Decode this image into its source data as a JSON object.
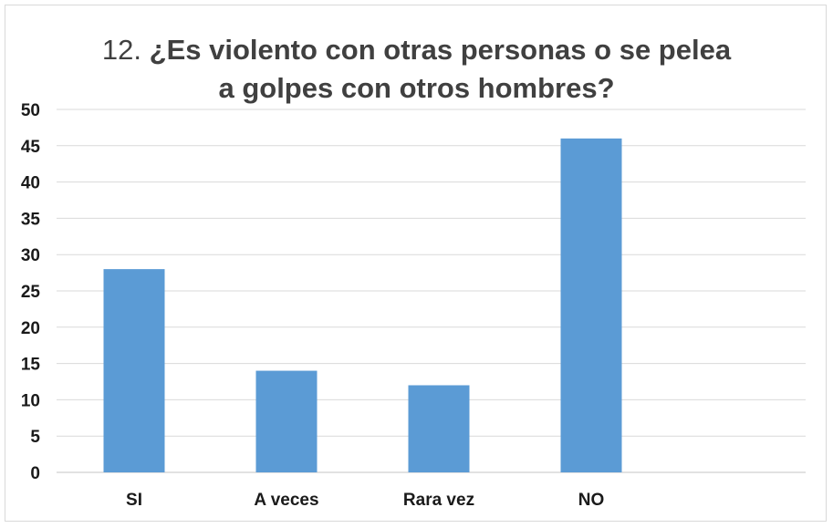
{
  "chart_data": {
    "type": "bar",
    "title_number": "12.",
    "title_line1": "¿Es violento con otras personas o se pelea",
    "title_line2": "a golpes con otros hombres?",
    "categories": [
      "SI",
      "A veces",
      "Rara vez",
      "NO"
    ],
    "values": [
      28,
      14,
      12,
      46
    ],
    "ylim": [
      0,
      50
    ],
    "yticks": [
      0,
      5,
      10,
      15,
      20,
      25,
      30,
      35,
      40,
      45,
      50
    ],
    "grid": true,
    "bar_color": "#5b9bd5",
    "grid_color": "#d9d9d9"
  }
}
